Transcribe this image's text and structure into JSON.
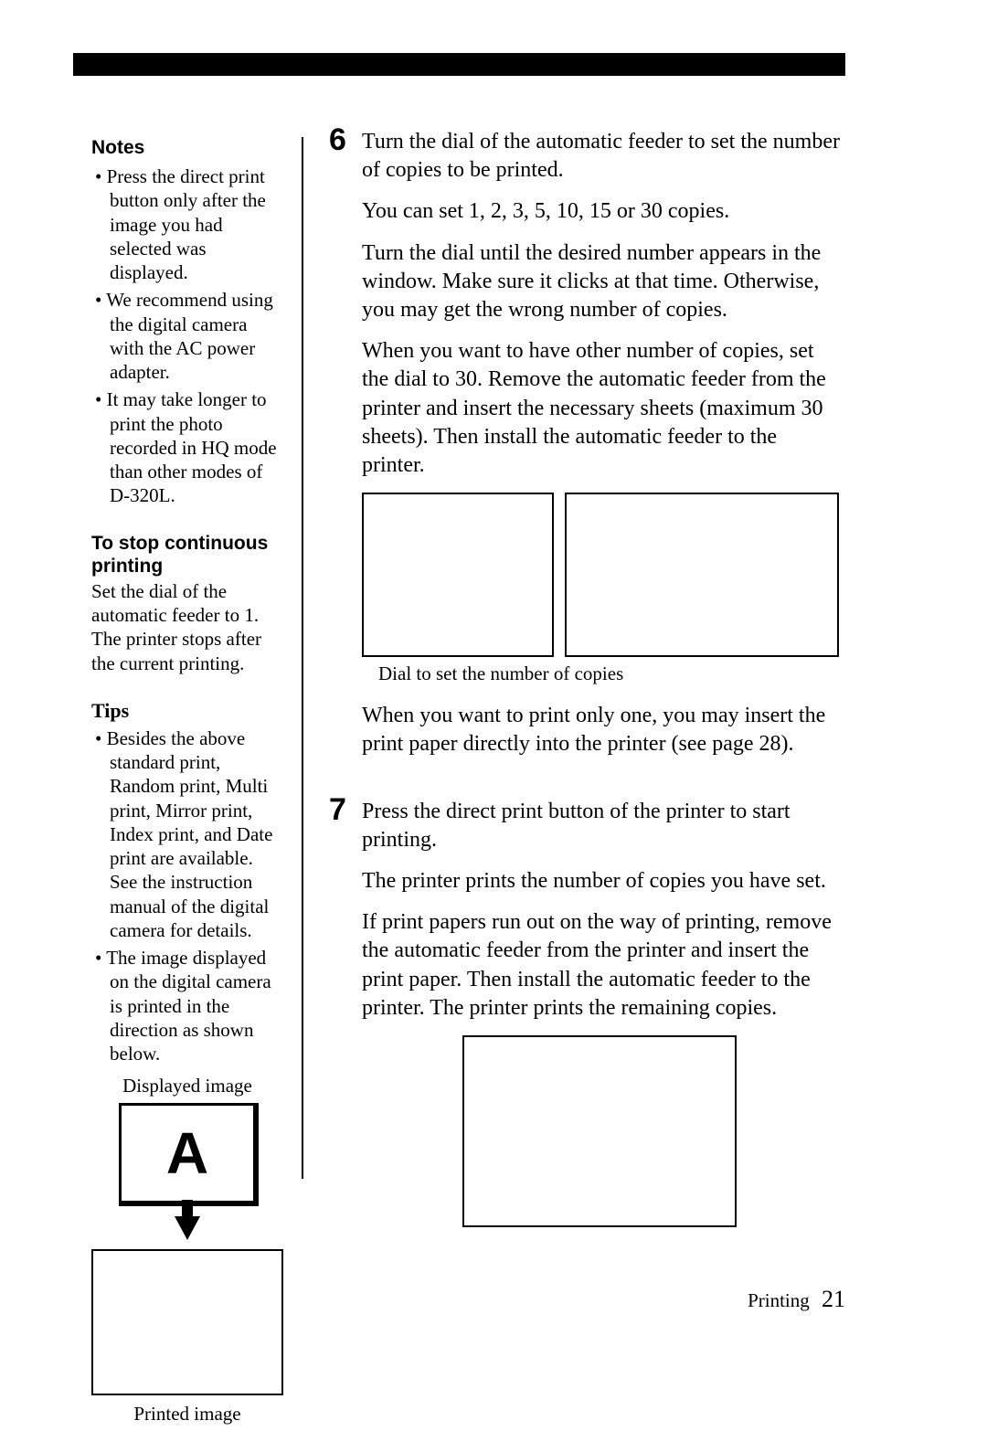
{
  "sidebar": {
    "notes_heading": "Notes",
    "notes": [
      "Press the direct print button only after the image you had selected was displayed.",
      "We recommend using the digital camera with the AC power adapter.",
      "It may take longer to print the photo recorded in HQ mode than other modes of D-320L."
    ],
    "stop_heading": "To stop continuous printing",
    "stop_body": "Set the dial of the automatic feeder to 1. The printer stops after the current printing.",
    "tips_heading": "Tips",
    "tips": [
      "Besides the above standard print, Random print, Multi print, Mirror print, Index print, and Date print are available.  See the instruction manual of the digital camera for details.",
      "The image displayed on the digital camera is printed in the direction as shown below."
    ],
    "displayed_label": "Displayed image",
    "printed_label": "Printed image",
    "image_letter": "A"
  },
  "main": {
    "step6": {
      "num": "6",
      "p1": "Turn the dial of the automatic feeder to set the number of copies to be printed.",
      "p2": "You can set 1, 2, 3, 5, 10, 15 or 30 copies.",
      "p3": "Turn the dial until the desired number appears in the window.  Make sure it clicks at that time. Otherwise, you may get the wrong number of copies.",
      "p4": "When you want to have other number of copies, set the dial to 30. Remove the automatic feeder from the printer and insert the necessary sheets (maximum 30 sheets).  Then install the automatic feeder to the printer.",
      "caption": "Dial to set the number of copies",
      "p5": "When you want to print only one, you may insert the print paper directly into the printer (see page 28)."
    },
    "step7": {
      "num": "7",
      "p1": "Press the direct print button of the printer to start printing.",
      "p2": "The printer prints the number of copies you have set.",
      "p3": "If print papers run out on the way of printing, remove the automatic feeder from the printer and insert the print paper.  Then install the automatic feeder to the printer. The printer prints the remaining copies."
    }
  },
  "footer": {
    "section": "Printing",
    "page": "21"
  }
}
